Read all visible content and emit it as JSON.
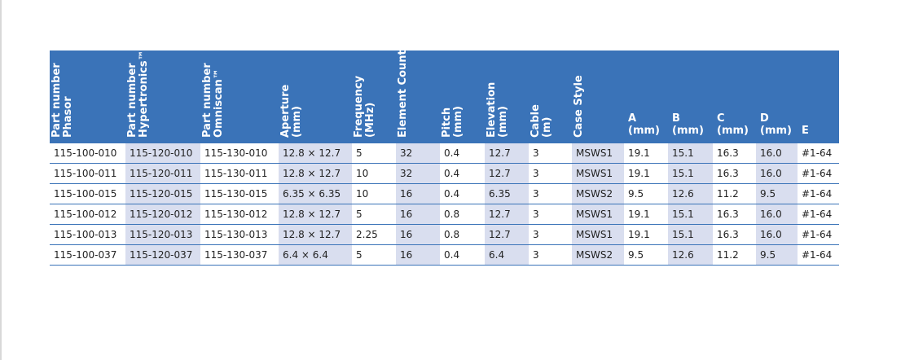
{
  "headers": [
    {
      "line1": "Part number",
      "line2": "Phasor",
      "rotated": true
    },
    {
      "line1": "Part number",
      "line2": "Hypertronics™",
      "rotated": true
    },
    {
      "line1": "Part number",
      "line2": "Omniscan™",
      "rotated": true
    },
    {
      "line1": "Aperture",
      "line2": "(mm)",
      "rotated": true
    },
    {
      "line1": "Frequency",
      "line2": "(MHz)",
      "rotated": true
    },
    {
      "line1": "Element Count",
      "line2": "",
      "rotated": true
    },
    {
      "line1": "Pitch",
      "line2": "(mm)",
      "rotated": true
    },
    {
      "line1": "Elevation",
      "line2": "(mm)",
      "rotated": true
    },
    {
      "line1": "Cable",
      "line2": "(m)",
      "rotated": true
    },
    {
      "line1": "Case Style",
      "line2": "",
      "rotated": true
    },
    {
      "line1": "A",
      "line2": "(mm)",
      "rotated": false
    },
    {
      "line1": "B",
      "line2": "(mm)",
      "rotated": false
    },
    {
      "line1": "C",
      "line2": "(mm)",
      "rotated": false
    },
    {
      "line1": "D",
      "line2": "(mm)",
      "rotated": false
    },
    {
      "line1": "E",
      "line2": "",
      "rotated": false
    }
  ],
  "rows": [
    [
      "115-100-010",
      "115-120-010",
      "115-130-010",
      "12.8 × 12.7",
      "5",
      "32",
      "0.4",
      "12.7",
      "3",
      "MSWS1",
      "19.1",
      "15.1",
      "16.3",
      "16.0",
      "#1-64"
    ],
    [
      "115-100-011",
      "115-120-011",
      "115-130-011",
      "12.8 × 12.7",
      "10",
      "32",
      "0.4",
      "12.7",
      "3",
      "MSWS1",
      "19.1",
      "15.1",
      "16.3",
      "16.0",
      "#1-64"
    ],
    [
      "115-100-015",
      "115-120-015",
      "115-130-015",
      "6.35 × 6.35",
      "10",
      "16",
      "0.4",
      "6.35",
      "3",
      "MSWS2",
      "9.5",
      "12.6",
      "11.2",
      "9.5",
      "#1-64"
    ],
    [
      "115-100-012",
      "115-120-012",
      "115-130-012",
      "12.8 × 12.7",
      "5",
      "16",
      "0.8",
      "12.7",
      "3",
      "MSWS1",
      "19.1",
      "15.1",
      "16.3",
      "16.0",
      "#1-64"
    ],
    [
      "115-100-013",
      "115-120-013",
      "115-130-013",
      "12.8 × 12.7",
      "2.25",
      "16",
      "0.8",
      "12.7",
      "3",
      "MSWS1",
      "19.1",
      "15.1",
      "16.3",
      "16.0",
      "#1-64"
    ],
    [
      "115-100-037",
      "115-120-037",
      "115-130-037",
      "6.4 × 6.4",
      "5",
      "16",
      "0.4",
      "6.4",
      "3",
      "MSWS2",
      "9.5",
      "12.6",
      "11.2",
      "9.5",
      "#1-64"
    ]
  ],
  "colors": {
    "header_bg": "#3a73b8",
    "header_text": "#ffffff",
    "row_stripe": "#d9deef",
    "row_plain": "#ffffff",
    "rule": "#3a73b8"
  }
}
